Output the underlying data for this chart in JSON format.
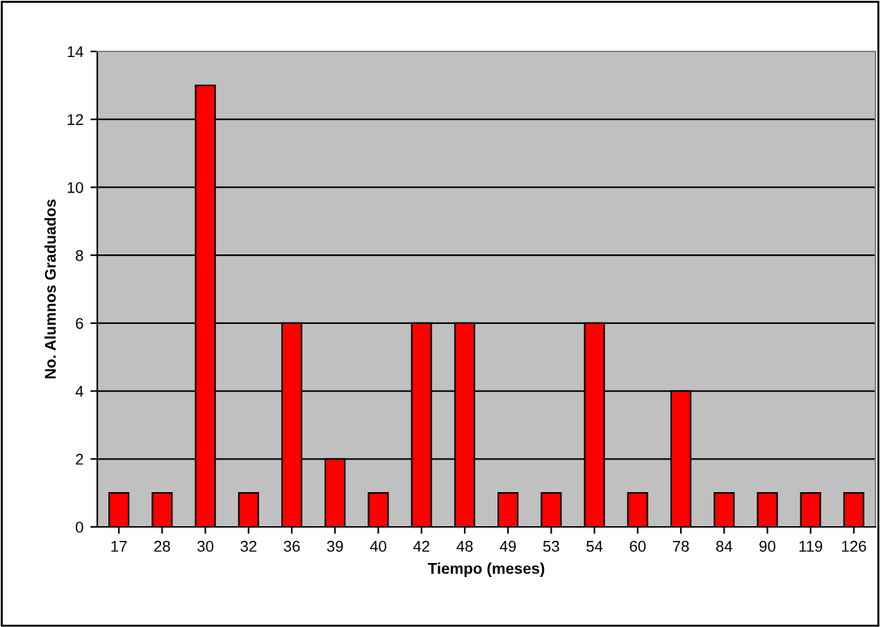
{
  "chart_data": {
    "type": "bar",
    "xlabel": "Tiempo (meses)",
    "ylabel": "No. Alumnos Graduados",
    "categories": [
      "17",
      "28",
      "30",
      "32",
      "36",
      "39",
      "40",
      "42",
      "48",
      "49",
      "53",
      "54",
      "60",
      "78",
      "84",
      "90",
      "119",
      "126"
    ],
    "values": [
      1,
      1,
      13,
      1,
      6,
      2,
      1,
      6,
      6,
      1,
      1,
      6,
      1,
      4,
      1,
      1,
      1,
      1
    ],
    "color": "#ff0000",
    "ylim": [
      0,
      14
    ],
    "yticks": [
      0,
      2,
      4,
      6,
      8,
      10,
      12,
      14
    ],
    "grid": "y",
    "legend": false
  }
}
